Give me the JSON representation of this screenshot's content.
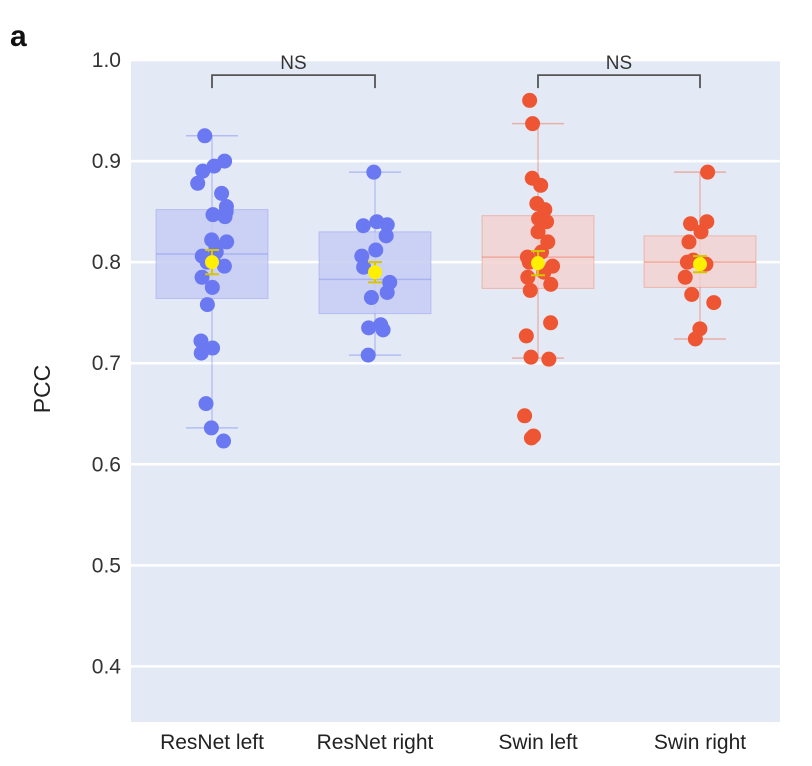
{
  "panel_label": "a",
  "colors": {
    "background": "#e4eaf5",
    "grid": "#ffffff",
    "resnet": "#6a78f2",
    "resnet_box": "#c7cdf3",
    "swin": "#ee5533",
    "swin_box": "#f2d2d0",
    "mean": "#ffef00",
    "bracket": "#555555"
  },
  "chart_data": {
    "type": "box",
    "title": "",
    "xlabel": "",
    "ylabel": "PCC",
    "ylim": [
      0.345,
      1.0
    ],
    "yticks": [
      0.4,
      0.5,
      0.6,
      0.7,
      0.8,
      0.9,
      1.0
    ],
    "ytick_labels": [
      "0.4",
      "0.5",
      "0.6",
      "0.7",
      "0.8",
      "0.9",
      "1.0"
    ],
    "grid": true,
    "categories": [
      "ResNet left",
      "ResNet right",
      "Swin left",
      "Swin right"
    ],
    "groups": [
      {
        "name": "ResNet left",
        "color_key": "resnet",
        "box": {
          "q1": 0.764,
          "median": 0.808,
          "q3": 0.852,
          "whisker_low": 0.636,
          "whisker_high": 0.925
        },
        "mean": 0.8,
        "mean_err": 0.012,
        "points": [
          0.925,
          0.9,
          0.895,
          0.89,
          0.878,
          0.868,
          0.855,
          0.85,
          0.847,
          0.845,
          0.822,
          0.82,
          0.815,
          0.81,
          0.806,
          0.802,
          0.8,
          0.796,
          0.785,
          0.775,
          0.758,
          0.722,
          0.715,
          0.71,
          0.66,
          0.636,
          0.623
        ]
      },
      {
        "name": "ResNet right",
        "color_key": "resnet",
        "box": {
          "q1": 0.749,
          "median": 0.783,
          "q3": 0.83,
          "whisker_low": 0.708,
          "whisker_high": 0.889
        },
        "mean": 0.79,
        "mean_err": 0.01,
        "points": [
          0.889,
          0.84,
          0.837,
          0.836,
          0.826,
          0.812,
          0.806,
          0.795,
          0.78,
          0.77,
          0.765,
          0.738,
          0.735,
          0.733,
          0.708
        ]
      },
      {
        "name": "Swin left",
        "color_key": "swin",
        "box": {
          "q1": 0.774,
          "median": 0.805,
          "q3": 0.846,
          "whisker_low": 0.705,
          "whisker_high": 0.937
        },
        "mean": 0.799,
        "mean_err": 0.012,
        "points": [
          0.96,
          0.937,
          0.883,
          0.876,
          0.858,
          0.852,
          0.843,
          0.84,
          0.83,
          0.82,
          0.81,
          0.805,
          0.8,
          0.796,
          0.79,
          0.785,
          0.778,
          0.772,
          0.74,
          0.727,
          0.706,
          0.704,
          0.648,
          0.628,
          0.626
        ]
      },
      {
        "name": "Swin right",
        "color_key": "swin",
        "box": {
          "q1": 0.775,
          "median": 0.8,
          "q3": 0.826,
          "whisker_low": 0.724,
          "whisker_high": 0.889
        },
        "mean": 0.798,
        "mean_err": 0.008,
        "points": [
          0.889,
          0.84,
          0.838,
          0.83,
          0.82,
          0.802,
          0.8,
          0.798,
          0.785,
          0.768,
          0.76,
          0.734,
          0.724
        ]
      }
    ],
    "annotations": [
      {
        "text": "NS",
        "from": "ResNet left",
        "to": "ResNet right",
        "y": 0.985
      },
      {
        "text": "NS",
        "from": "Swin left",
        "to": "Swin right",
        "y": 0.985
      }
    ]
  }
}
